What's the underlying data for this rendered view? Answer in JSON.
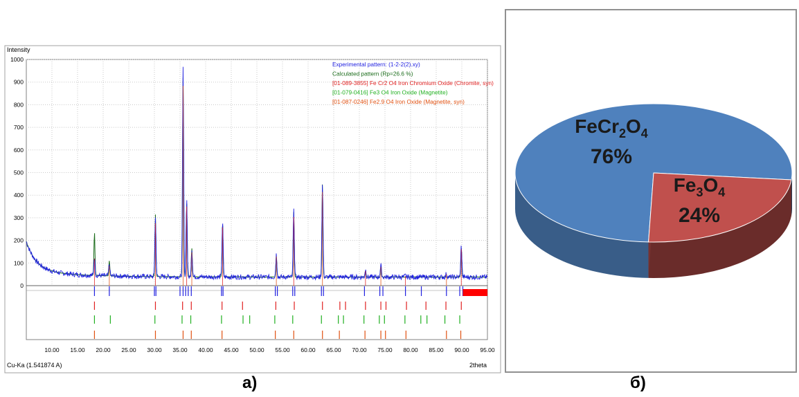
{
  "chart_data": [
    {
      "type": "line",
      "ylabel": "Intensity",
      "xlabel": "2theta",
      "radiation_label": "Cu-Ka (1.541874 A)",
      "xlim": [
        5,
        95
      ],
      "ylim": [
        0,
        1000
      ],
      "x_ticks": [
        "10.00",
        "15.00",
        "20.00",
        "25.00",
        "30.00",
        "35.00",
        "40.00",
        "45.00",
        "50.00",
        "55.00",
        "60.00",
        "65.00",
        "70.00",
        "75.00",
        "80.00",
        "85.00",
        "90.00",
        "95.00"
      ],
      "y_ticks": [
        "0",
        "100",
        "200",
        "300",
        "400",
        "500",
        "600",
        "700",
        "800",
        "900",
        "1000"
      ],
      "legend": [
        {
          "label": "Experimental pattern: (1-2-2(2).xy)",
          "color": "#2020e0"
        },
        {
          "label": "Calculated pattern (Rp=26.6 %)",
          "color": "#1a6b1a"
        },
        {
          "label": "[01-089-3855] Fe Cr2 O4 Iron Chromium Oxide (Chromite, syn)",
          "color": "#e02020"
        },
        {
          "label": "[01-079-0416] Fe3 O4 Iron Oxide (Magnetite)",
          "color": "#20b020"
        },
        {
          "label": "[01-087-0246] Fe2.9 O4 Iron Oxide (Magnetite, syn)",
          "color": "#e05010"
        }
      ],
      "series": [
        {
          "name": "Experimental pattern: (1-2-2(2).xy)",
          "color": "#2020e0",
          "peaks": [
            [
              18.3,
              130
            ],
            [
              21.2,
              95
            ],
            [
              30.2,
              300
            ],
            [
              35.6,
              960
            ],
            [
              36.3,
              380
            ],
            [
              37.3,
              160
            ],
            [
              43.3,
              280
            ],
            [
              53.8,
              140
            ],
            [
              57.2,
              330
            ],
            [
              62.8,
              450
            ],
            [
              71.2,
              70
            ],
            [
              74.2,
              90
            ],
            [
              79.0,
              45
            ],
            [
              87.0,
              55
            ],
            [
              89.9,
              175
            ]
          ]
        },
        {
          "name": "Calculated pattern (Rp=26.6 %)",
          "color": "#1a6b1a",
          "peaks": [
            [
              18.3,
              235
            ],
            [
              21.2,
              110
            ],
            [
              30.2,
              315
            ],
            [
              35.6,
              920
            ],
            [
              36.3,
              370
            ],
            [
              37.3,
              165
            ],
            [
              43.3,
              285
            ],
            [
              53.8,
              130
            ],
            [
              57.2,
              325
            ],
            [
              62.8,
              455
            ],
            [
              71.2,
              65
            ],
            [
              74.2,
              85
            ],
            [
              89.9,
              170
            ]
          ]
        }
      ],
      "reference_markers": {
        "experimental_blue": [
          18.3,
          21.2,
          30.0,
          30.3,
          35.0,
          35.6,
          36.1,
          36.6,
          37.2,
          43.1,
          43.4,
          53.6,
          54.0,
          57.0,
          57.4,
          62.6,
          63.0,
          71.0,
          74.0,
          74.6,
          79.0,
          82.1,
          87.0,
          89.6,
          90.2
        ],
        "chromite": [
          18.3,
          30.2,
          35.5,
          37.2,
          43.2,
          47.2,
          53.7,
          57.3,
          62.8,
          66.2,
          67.3,
          71.2,
          74.2,
          75.2,
          79.2,
          83.0,
          86.9,
          89.9
        ],
        "magnetite": [
          18.3,
          21.4,
          30.1,
          35.4,
          37.1,
          43.1,
          47.3,
          48.6,
          53.5,
          57.0,
          62.6,
          65.9,
          66.9,
          70.9,
          73.9,
          74.9,
          78.9,
          82.0,
          83.2,
          86.7,
          89.6
        ],
        "magnetite_syn": [
          18.3,
          30.2,
          35.6,
          37.2,
          43.2,
          53.6,
          57.2,
          62.8,
          66.1,
          71.1,
          74.2,
          75.1,
          79.1,
          87.0,
          89.8
        ]
      }
    },
    {
      "type": "pie",
      "style": "3d",
      "slices": [
        {
          "label_parts": [
            {
              "t": "FeCr",
              "sub": false
            },
            {
              "t": "2",
              "sub": true
            },
            {
              "t": "O",
              "sub": false
            },
            {
              "t": "4",
              "sub": true
            }
          ],
          "value": 76,
          "value_label": "76%",
          "color": "#4f81bd"
        },
        {
          "label_parts": [
            {
              "t": "Fe",
              "sub": false
            },
            {
              "t": "3",
              "sub": true
            },
            {
              "t": "O",
              "sub": false
            },
            {
              "t": "4",
              "sub": true
            }
          ],
          "value": 24,
          "value_label": "24%",
          "color": "#c0504d"
        }
      ]
    }
  ],
  "captions": {
    "left": "a)",
    "right": "б)"
  }
}
